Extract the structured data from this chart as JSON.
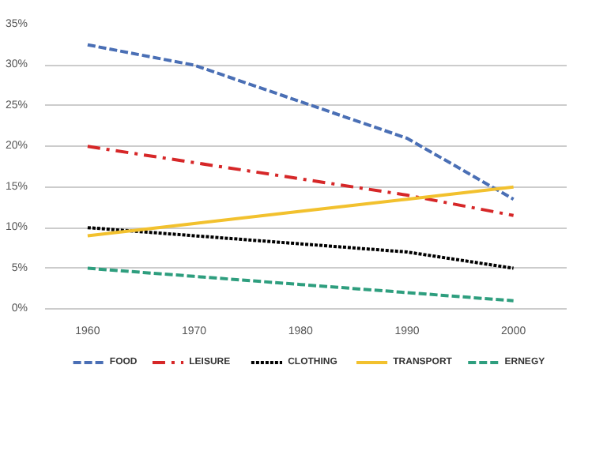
{
  "chart_data": {
    "type": "line",
    "x": [
      1960,
      1970,
      1980,
      1990,
      2000
    ],
    "series": [
      {
        "name": "FOOD",
        "color": "#4a6fb5",
        "line_style": "dashed",
        "values": [
          32.5,
          30,
          25.5,
          21,
          13.5
        ]
      },
      {
        "name": "LEISURE",
        "color": "#d62728",
        "line_style": "dashdot",
        "values": [
          20,
          18,
          16,
          14,
          11.5
        ]
      },
      {
        "name": "CLOTHING",
        "color": "#000000",
        "line_style": "dotted",
        "values": [
          10,
          9,
          8,
          7,
          5
        ]
      },
      {
        "name": "TRANSPORT",
        "color": "#f2c12e",
        "line_style": "solid",
        "values": [
          9,
          10.5,
          12,
          13.5,
          15
        ]
      },
      {
        "name": "ERNEGY",
        "color": "#2e9e7e",
        "line_style": "dashed",
        "values": [
          5,
          4,
          3,
          2,
          1
        ]
      }
    ],
    "xlim": [
      1956,
      2005
    ],
    "xticks": [
      1960,
      1970,
      1980,
      1990,
      2000
    ],
    "ylim": [
      0,
      35
    ],
    "yticks": [
      {
        "value": 0,
        "label": "0%"
      },
      {
        "value": 5,
        "label": "5%"
      },
      {
        "value": 10,
        "label": "10%"
      },
      {
        "value": 15,
        "label": "15%"
      },
      {
        "value": 20,
        "label": "20%"
      },
      {
        "value": 25,
        "label": "25%"
      },
      {
        "value": 30,
        "label": "30%"
      },
      {
        "value": 35,
        "label": "35%"
      }
    ],
    "grid": "y",
    "legend": "bottom",
    "marker": "none"
  }
}
